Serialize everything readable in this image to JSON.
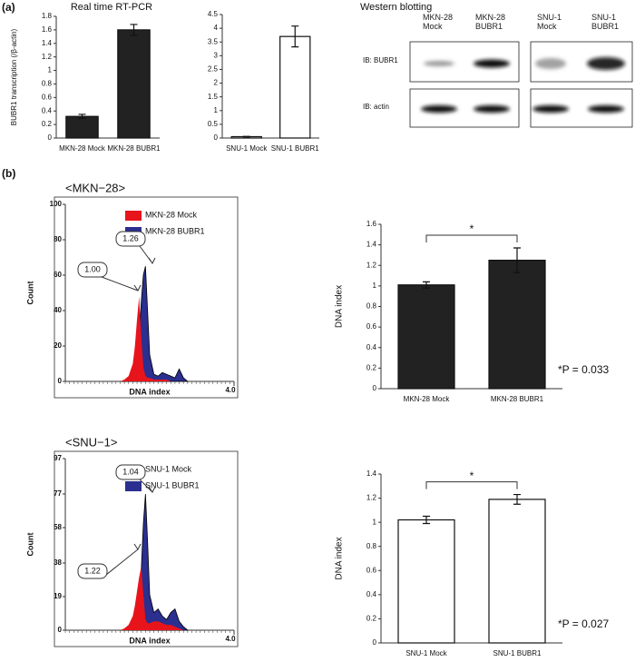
{
  "panel_labels": [
    "(a)",
    "(b)"
  ],
  "western": {
    "title": "Western blotting",
    "lanes": [
      "MKN-28 Mock",
      "MKN-28 BUBR1",
      "SNU-1 Mock",
      "SNU-1 BUBR1"
    ],
    "rows": [
      "IB: BUBR1",
      "IB: actin"
    ]
  },
  "chart_data": [
    {
      "type": "bar",
      "title": "Real time RT-PCR",
      "ylabel": "BUBR1 transcription (/β-actin)",
      "categories": [
        "MKN-28 Mock",
        "MKN-28 BUBR1"
      ],
      "values": [
        0.32,
        1.6
      ],
      "errors": [
        0.03,
        0.08
      ],
      "color": "#222222",
      "ylim": [
        0,
        1.8
      ],
      "yticks": [
        0,
        0.2,
        0.4,
        0.6,
        0.8,
        1,
        1.2,
        1.4,
        1.6,
        1.8
      ]
    },
    {
      "type": "bar",
      "categories": [
        "SNU-1 Mock",
        "SNU-1 BUBR1"
      ],
      "values": [
        0.05,
        3.7
      ],
      "errors": [
        0.01,
        0.38
      ],
      "color": "#ffffff",
      "ylim": [
        0,
        4.5
      ],
      "yticks": [
        0,
        0.5,
        1,
        1.5,
        2,
        2.5,
        3,
        3.5,
        4,
        4.5
      ]
    },
    {
      "type": "area",
      "title": "<MKN−28>",
      "ylabel": "Count",
      "xlabel": "DNA index",
      "x": [
        1.3,
        1.4,
        1.5,
        1.6,
        1.65,
        1.7,
        1.75,
        1.8,
        1.85,
        1.9,
        1.95,
        2.0,
        2.1,
        2.2,
        2.3,
        2.4,
        2.5,
        2.6,
        2.7,
        2.8,
        2.9
      ],
      "series": [
        {
          "name": "MKN-28 Mock",
          "color": "#e8141c",
          "values": [
            0,
            1,
            3,
            10,
            20,
            35,
            48,
            25,
            8,
            3,
            2,
            2,
            1,
            1,
            1,
            1,
            0,
            0,
            0,
            0,
            0
          ]
        },
        {
          "name": "MKN-28 BUBR1",
          "color": "#2b2f8f",
          "values": [
            0,
            0,
            1,
            3,
            6,
            12,
            25,
            45,
            60,
            65,
            40,
            15,
            4,
            3,
            5,
            4,
            3,
            2,
            7,
            2,
            0
          ]
        }
      ],
      "callouts": [
        "1.00",
        "1.26"
      ],
      "xlim": [
        0,
        4
      ],
      "xticks": [
        {
          "value": 4,
          "label": "4.0"
        }
      ],
      "ylim": [
        0,
        100
      ],
      "yticks": [
        0,
        20,
        40,
        60,
        80,
        100
      ]
    },
    {
      "type": "bar",
      "ylabel": "DNA index",
      "categories": [
        "MKN-28 Mock",
        "MKN-28 BUBR1"
      ],
      "values": [
        1.01,
        1.25
      ],
      "errors": [
        0.03,
        0.12
      ],
      "color": "#222222",
      "ylim": [
        0,
        1.6
      ],
      "yticks": [
        0,
        0.2,
        0.4,
        0.6,
        0.8,
        1,
        1.2,
        1.4,
        1.6
      ],
      "significance": "*",
      "note": "*P = 0.033"
    },
    {
      "type": "area",
      "title": "<SNU−1>",
      "ylabel": "Count",
      "xlabel": "DNA index",
      "x": [
        1.3,
        1.4,
        1.5,
        1.6,
        1.65,
        1.7,
        1.75,
        1.8,
        1.85,
        1.9,
        1.95,
        2.0,
        2.1,
        2.2,
        2.3,
        2.4,
        2.5,
        2.6,
        2.7,
        2.8,
        2.9
      ],
      "series": [
        {
          "name": "SNU-1 Mock",
          "color": "#e8141c",
          "values": [
            0,
            1,
            3,
            8,
            14,
            22,
            30,
            36,
            20,
            6,
            4,
            4,
            5,
            5,
            4,
            3,
            3,
            2,
            1,
            0,
            0
          ]
        },
        {
          "name": "SNU-1 BUBR1",
          "color": "#2b2f8f",
          "values": [
            0,
            0,
            1,
            3,
            6,
            12,
            20,
            34,
            60,
            77,
            50,
            20,
            10,
            12,
            8,
            6,
            10,
            12,
            5,
            2,
            0
          ]
        }
      ],
      "callouts": [
        "1.22",
        "1.04"
      ],
      "xlim": [
        0,
        4
      ],
      "xticks": [
        {
          "value": 4,
          "label": "4.0"
        }
      ],
      "ylim": [
        0,
        97
      ],
      "yticks": [
        0,
        19,
        38,
        58,
        77,
        97
      ]
    },
    {
      "type": "bar",
      "ylabel": "DNA index",
      "categories": [
        "SNU-1 Mock",
        "SNU-1 BUBR1"
      ],
      "values": [
        1.02,
        1.19
      ],
      "errors": [
        0.03,
        0.04
      ],
      "color": "#ffffff",
      "ylim": [
        0,
        1.4
      ],
      "yticks": [
        0,
        0.2,
        0.4,
        0.6,
        0.8,
        1,
        1.2,
        1.4
      ],
      "significance": "*",
      "note": "*P = 0.027"
    }
  ]
}
